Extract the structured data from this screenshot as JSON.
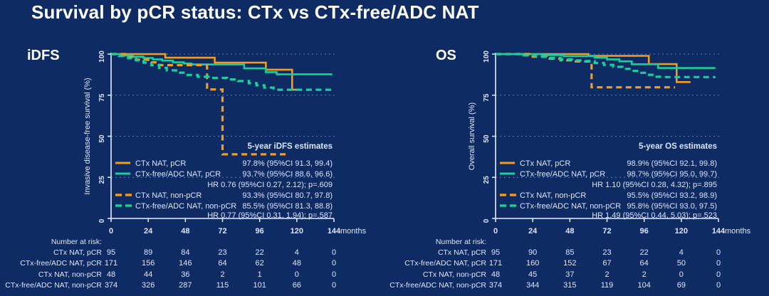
{
  "title": "Survival by pCR status: CTx vs CTx-free/ADC NAT",
  "colors": {
    "background": "#0E2B63",
    "orange": "#F59B1E",
    "teal": "#1BCE9E",
    "title_text": "#FFFFFF",
    "chart_text": "#DDE6F8",
    "axis": "#E8EEFB",
    "grid": "#AEBBDD"
  },
  "chart_data": [
    {
      "type": "line",
      "subtype": "kaplan-meier-step",
      "panel_label": "iDFS",
      "ylabel": "Invasive disease-free survival (%)",
      "x_unit": "months",
      "xlim": [
        0,
        144
      ],
      "ylim": [
        0,
        100
      ],
      "xticks": [
        0,
        24,
        48,
        72,
        96,
        120,
        144
      ],
      "yticks": [
        0,
        25,
        50,
        75,
        100
      ],
      "grid": true,
      "legend_title": "5-year iDFS estimates",
      "series": [
        {
          "name": "CTx NAT, pCR",
          "color": "#F59B1E",
          "dashed": false,
          "estimate": "97.8% (95%CI 91.3, 99.4)",
          "steps": [
            [
              0,
              100
            ],
            [
              35,
              100
            ],
            [
              35,
              97.8
            ],
            [
              67,
              97.8
            ],
            [
              67,
              94.8
            ],
            [
              100,
              94.8
            ],
            [
              100,
              90.5
            ],
            [
              117,
              90.5
            ],
            [
              117,
              78.3
            ],
            [
              123,
              78.3
            ]
          ]
        },
        {
          "name": "CTx-free/ADC NAT, pCR",
          "color": "#1BCE9E",
          "dashed": false,
          "estimate": "93.7% (95%CI 88.6, 96.6)",
          "steps": [
            [
              0,
              100
            ],
            [
              7,
              100
            ],
            [
              7,
              99.2
            ],
            [
              14,
              99.2
            ],
            [
              14,
              98.4
            ],
            [
              21,
              98.4
            ],
            [
              21,
              97.6
            ],
            [
              27,
              97.6
            ],
            [
              27,
              96.8
            ],
            [
              33,
              96.8
            ],
            [
              33,
              96
            ],
            [
              40,
              96
            ],
            [
              40,
              95
            ],
            [
              47,
              95
            ],
            [
              47,
              94.3
            ],
            [
              52,
              94.3
            ],
            [
              52,
              93.7
            ],
            [
              86,
              93.7
            ],
            [
              86,
              91.3
            ],
            [
              100,
              91.3
            ],
            [
              100,
              89
            ],
            [
              107,
              89
            ],
            [
              107,
              87.7
            ],
            [
              143,
              87.7
            ]
          ]
        },
        {
          "name": "CTx NAT, non-pCR",
          "color": "#F59B1E",
          "dashed": true,
          "estimate": "93.3% (95%CI 80.7, 97.8)",
          "steps": [
            [
              0,
              100
            ],
            [
              9,
              100
            ],
            [
              9,
              98.2
            ],
            [
              16,
              98.2
            ],
            [
              16,
              96.6
            ],
            [
              24,
              96.6
            ],
            [
              24,
              95
            ],
            [
              31,
              95
            ],
            [
              31,
              93.3
            ],
            [
              62,
              93.3
            ],
            [
              62,
              78.5
            ],
            [
              72,
              78.5
            ],
            [
              72,
              39
            ],
            [
              115,
              39
            ]
          ]
        },
        {
          "name": "CTx-free/ADC NAT, non-pCR",
          "color": "#1BCE9E",
          "dashed": true,
          "estimate": "85.5% (95%CI 81.3, 88.8)",
          "steps": [
            [
              0,
              100
            ],
            [
              5,
              100
            ],
            [
              5,
              98.8
            ],
            [
              11,
              98.8
            ],
            [
              11,
              97.5
            ],
            [
              16,
              97.5
            ],
            [
              16,
              96.2
            ],
            [
              21,
              96.2
            ],
            [
              21,
              94.8
            ],
            [
              26,
              94.8
            ],
            [
              26,
              93.2
            ],
            [
              31,
              93.2
            ],
            [
              31,
              91.6
            ],
            [
              36,
              91.6
            ],
            [
              36,
              90.1
            ],
            [
              42,
              90.1
            ],
            [
              42,
              88.7
            ],
            [
              48,
              88.7
            ],
            [
              48,
              87.3
            ],
            [
              56,
              87.3
            ],
            [
              56,
              86.2
            ],
            [
              63,
              86.2
            ],
            [
              63,
              85.5
            ],
            [
              75,
              85.5
            ],
            [
              75,
              84.6
            ],
            [
              82,
              84.6
            ],
            [
              82,
              83.6
            ],
            [
              89,
              83.6
            ],
            [
              89,
              82.3
            ],
            [
              94,
              82.3
            ],
            [
              94,
              81
            ],
            [
              99,
              81
            ],
            [
              99,
              79.6
            ],
            [
              105,
              79.6
            ],
            [
              105,
              78.3
            ],
            [
              143,
              78.3
            ]
          ]
        }
      ],
      "hr_annotations": [
        "HR 0.76 (95%CI 0.27, 2.12); p=.609",
        "HR 0.77 (95%CI 0.31, 1.94); p=.587"
      ],
      "risk_table": {
        "header": "Number at risk:",
        "time_points": [
          0,
          24,
          48,
          72,
          96,
          120,
          144
        ],
        "rows": [
          {
            "name": "CTx NAT, pCR",
            "values": [
              95,
              89,
              84,
              23,
              22,
              4,
              0
            ]
          },
          {
            "name": "CTx-free/ADC NAT, pCR",
            "values": [
              171,
              156,
              146,
              64,
              62,
              48,
              0
            ]
          },
          {
            "name": "CTx NAT, non-pCR",
            "values": [
              48,
              44,
              36,
              2,
              1,
              0,
              0
            ]
          },
          {
            "name": "CTx-free/ADC NAT, non-pCR",
            "values": [
              374,
              326,
              287,
              115,
              101,
              66,
              0
            ]
          }
        ]
      }
    },
    {
      "type": "line",
      "subtype": "kaplan-meier-step",
      "panel_label": "OS",
      "ylabel": "Overall survival (%)",
      "x_unit": "months",
      "xlim": [
        0,
        144
      ],
      "ylim": [
        0,
        100
      ],
      "xticks": [
        0,
        24,
        48,
        72,
        96,
        120,
        144
      ],
      "yticks": [
        0,
        25,
        50,
        75,
        100
      ],
      "grid": true,
      "legend_title": "5-year OS estimates",
      "series": [
        {
          "name": "CTx NAT, pCR",
          "color": "#F59B1E",
          "dashed": false,
          "estimate": "98.9% (95%CI 92.1, 99.8)",
          "steps": [
            [
              0,
              100
            ],
            [
              60,
              100
            ],
            [
              60,
              98.9
            ],
            [
              99,
              98.9
            ],
            [
              99,
              93.9
            ],
            [
              117,
              93.9
            ],
            [
              117,
              83
            ],
            [
              126,
              83
            ]
          ]
        },
        {
          "name": "CTx-free/ADC NAT, pCR",
          "color": "#1BCE9E",
          "dashed": false,
          "estimate": "98.7% (95%CI 95.0, 99.7)",
          "steps": [
            [
              0,
              100
            ],
            [
              30,
              100
            ],
            [
              30,
              99.4
            ],
            [
              44,
              99.4
            ],
            [
              44,
              98.7
            ],
            [
              64,
              98.7
            ],
            [
              64,
              97.8
            ],
            [
              72,
              97.8
            ],
            [
              72,
              96.8
            ],
            [
              80,
              96.8
            ],
            [
              80,
              95.6
            ],
            [
              88,
              95.6
            ],
            [
              88,
              93.8
            ],
            [
              105,
              93.8
            ],
            [
              105,
              91.5
            ],
            [
              142,
              91.5
            ]
          ]
        },
        {
          "name": "CTx NAT, non-pCR",
          "color": "#F59B1E",
          "dashed": true,
          "estimate": "95.5% (95%CI 93.2, 98.9)",
          "steps": [
            [
              0,
              100
            ],
            [
              24,
              100
            ],
            [
              24,
              98.4
            ],
            [
              33,
              98.4
            ],
            [
              33,
              97.2
            ],
            [
              42,
              97.2
            ],
            [
              42,
              96.2
            ],
            [
              50,
              96.2
            ],
            [
              50,
              95.5
            ],
            [
              62,
              95.5
            ],
            [
              62,
              79.8
            ],
            [
              116,
              79.8
            ]
          ]
        },
        {
          "name": "CTx-free/ADC NAT, non-pCR",
          "color": "#1BCE9E",
          "dashed": true,
          "estimate": "95.8% (95%CI 93.0, 97.5)",
          "steps": [
            [
              0,
              100
            ],
            [
              18,
              100
            ],
            [
              18,
              99.2
            ],
            [
              26,
              99.2
            ],
            [
              26,
              98.4
            ],
            [
              34,
              98.4
            ],
            [
              34,
              97.6
            ],
            [
              42,
              97.6
            ],
            [
              42,
              96.8
            ],
            [
              50,
              96.8
            ],
            [
              50,
              96.2
            ],
            [
              58,
              96.2
            ],
            [
              58,
              95.8
            ],
            [
              64,
              95.8
            ],
            [
              64,
              94.6
            ],
            [
              70,
              94.6
            ],
            [
              70,
              93.4
            ],
            [
              76,
              93.4
            ],
            [
              76,
              92.2
            ],
            [
              82,
              92.2
            ],
            [
              82,
              91
            ],
            [
              88,
              91
            ],
            [
              88,
              89.8
            ],
            [
              93,
              89.8
            ],
            [
              93,
              88.6
            ],
            [
              98,
              88.6
            ],
            [
              98,
              87.4
            ],
            [
              103,
              87.4
            ],
            [
              103,
              86.2
            ],
            [
              108,
              86.2
            ],
            [
              108,
              86
            ],
            [
              142,
              86
            ]
          ]
        }
      ],
      "hr_annotations": [
        "HR 1.10 (95%CI 0.28, 4.32); p=.895",
        "HR 1.49 (95%CI 0.44, 5.03); p=.523"
      ],
      "risk_table": {
        "header": "Number at risk:",
        "time_points": [
          0,
          24,
          48,
          72,
          96,
          120,
          144
        ],
        "rows": [
          {
            "name": "CTx NAT, pCR",
            "values": [
              95,
              90,
              85,
              23,
              22,
              4,
              0
            ]
          },
          {
            "name": "CTx-free/ADC NAT, pCR",
            "values": [
              171,
              160,
              152,
              67,
              64,
              50,
              0
            ]
          },
          {
            "name": "CTx NAT, non-pCR",
            "values": [
              48,
              45,
              37,
              2,
              2,
              0,
              0
            ]
          },
          {
            "name": "CTx-free/ADC NAT, non-pCR",
            "values": [
              374,
              344,
              315,
              119,
              104,
              69,
              0
            ]
          }
        ]
      }
    }
  ]
}
